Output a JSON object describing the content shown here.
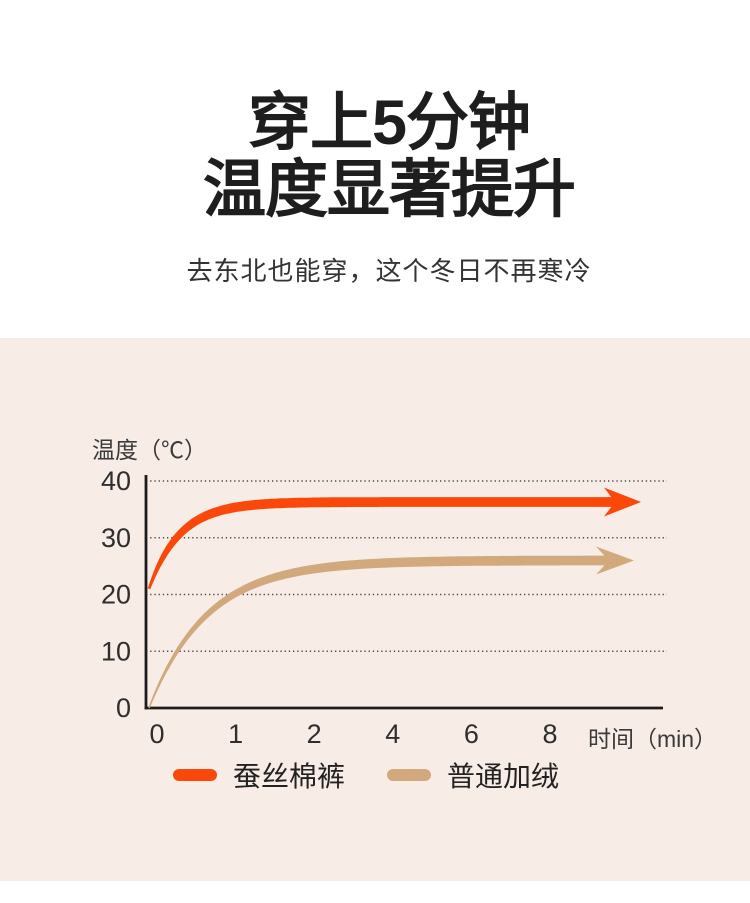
{
  "header": {
    "title_line1": "穿上5分钟",
    "title_line2": "温度显著提升",
    "subtitle": "去东北也能穿，这个冬日不再寒冷"
  },
  "chart_data": {
    "type": "line",
    "title": "",
    "ylabel": "温度（℃）",
    "xlabel": "时间（min）",
    "x_ticks": [
      0,
      1,
      2,
      4,
      6,
      8
    ],
    "y_ticks": [
      0,
      10,
      20,
      30,
      40
    ],
    "ylim": [
      0,
      40
    ],
    "x_scale_note": "ticks 0,1,2,4,6,8 equally spaced",
    "grid": "horizontal dotted",
    "grid_color": "#4a4a4a",
    "background": "#f8ece7",
    "legend_position": "bottom",
    "series": [
      {
        "id": "silk-cotton-pants",
        "name": "蚕丝棉裤",
        "color": "#fa470a",
        "x": [
          0,
          0.5,
          1,
          2,
          4,
          6,
          8
        ],
        "values": [
          21,
          31.9,
          35.0,
          36.2,
          36.3,
          36.3,
          36.3
        ],
        "start": 21,
        "plateau": 36.3,
        "tau_min": 0.4
      },
      {
        "id": "ordinary-fleece",
        "name": "普通加绒",
        "color": "#d2a87d",
        "x": [
          0,
          0.5,
          1,
          2,
          4,
          6,
          8
        ],
        "values": [
          0,
          11.6,
          18.0,
          23.6,
          25.8,
          26.0,
          26.0
        ],
        "start": 0,
        "plateau": 26.0,
        "tau_min": 0.85
      }
    ]
  },
  "colors": {
    "page_bg": "#ffffff",
    "panel_bg": "#f8ece7",
    "title_text": "#1e1e1e",
    "subtitle_text": "#333333",
    "axis_text": "#2e2e2e",
    "axis_line": "#1c1c1c"
  }
}
